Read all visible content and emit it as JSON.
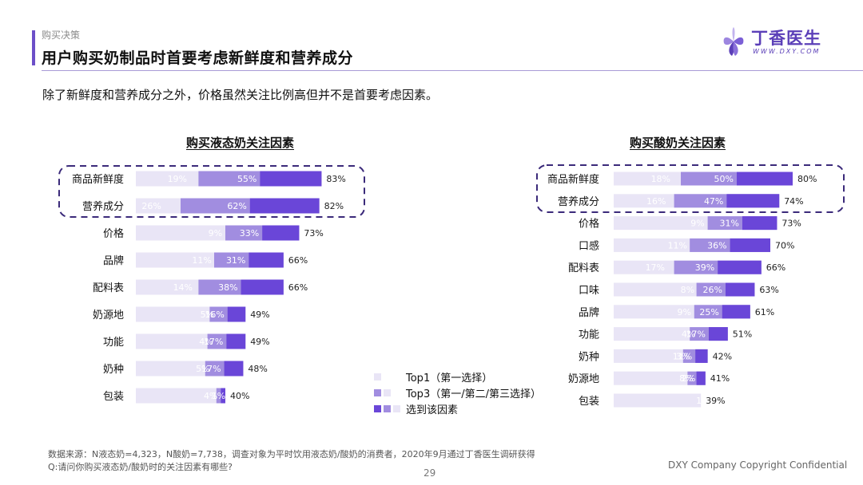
{
  "header": {
    "section_label": "购买决策",
    "title": "用户购买奶制品时首要考虑新鲜度和营养成分",
    "subtitle": "除了新鲜度和营养成分之外，价格虽然关注比例高但并不是首要考虑因素。"
  },
  "logo": {
    "name": "丁香医生",
    "url_text": "WWW.DXY.COM",
    "color": "#5b3fb8"
  },
  "colors": {
    "top1": "#e9e5f6",
    "top3": "#a18de0",
    "selected": "#6a46d8",
    "highlight_border": "#3b2a7a",
    "accent": "#6c4fc8"
  },
  "legend": {
    "items": [
      {
        "label": "Top1（第一选择）",
        "icon": "single-light-square"
      },
      {
        "label": "Top3（第一/第二/第三选择）",
        "icon": "light-and-medium-squares"
      },
      {
        "label": "选到该因素",
        "icon": "three-purple-squares"
      }
    ]
  },
  "chart_data": [
    {
      "type": "bar",
      "orientation": "horizontal-stacked-overlay",
      "title": "购买液态奶关注因素",
      "categories": [
        "商品新鲜度",
        "营养成分",
        "价格",
        "品牌",
        "配料表",
        "奶源地",
        "功能",
        "奶种",
        "包装"
      ],
      "series": [
        {
          "name": "Top1（第一选择）",
          "values": [
            19,
            26,
            9,
            11,
            14,
            5,
            4,
            5,
            1
          ]
        },
        {
          "name": "Top3（第一/第二/第三选择）",
          "values": [
            55,
            62,
            33,
            31,
            38,
            16,
            17,
            17,
            4
          ]
        },
        {
          "name": "选到该因素",
          "values": [
            83,
            82,
            73,
            66,
            66,
            49,
            49,
            48,
            40
          ]
        }
      ],
      "highlighted_categories": [
        "商品新鲜度",
        "营养成分"
      ],
      "unit": "%"
    },
    {
      "type": "bar",
      "orientation": "horizontal-stacked-overlay",
      "title": "购买酸奶关注因素",
      "categories": [
        "商品新鲜度",
        "营养成分",
        "价格",
        "口感",
        "配料表",
        "口味",
        "品牌",
        "功能",
        "奶种",
        "奶源地",
        "包装"
      ],
      "series": [
        {
          "name": "Top1（第一选择）",
          "values": [
            18,
            16,
            9,
            11,
            17,
            8,
            9,
            4,
            3,
            2,
            1
          ]
        },
        {
          "name": "Top3（第一/第二/第三选择）",
          "values": [
            50,
            47,
            31,
            36,
            39,
            26,
            25,
            17,
            11,
            8,
            0
          ]
        },
        {
          "name": "选到该因素",
          "values": [
            80,
            74,
            73,
            70,
            66,
            63,
            61,
            51,
            42,
            41,
            39
          ]
        }
      ],
      "highlighted_categories": [
        "商品新鲜度",
        "营养成分"
      ],
      "unit": "%"
    }
  ],
  "footer": {
    "source": "数据来源：N液态奶=4,323，N酸奶=7,738，调查对象为平时饮用液态奶/酸奶的消费者，2020年9月通过丁香医生调研获得",
    "question": "Q:请问你购买液态奶/酸奶时的关注因素有哪些?",
    "page_number": "29",
    "copyright": "DXY Company Copyright Confidential"
  }
}
